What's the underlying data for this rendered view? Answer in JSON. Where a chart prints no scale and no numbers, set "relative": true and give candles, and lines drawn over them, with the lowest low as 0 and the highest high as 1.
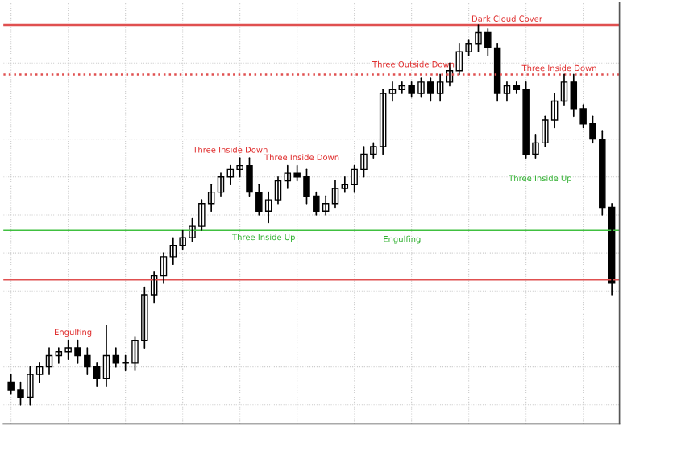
{
  "chart_data": {
    "type": "candlestick",
    "relative": true,
    "grid": true,
    "categories": [
      null,
      null,
      null,
      null,
      null,
      null,
      null,
      null,
      null,
      null,
      null,
      null,
      null,
      null,
      null,
      null,
      null,
      null,
      null,
      null,
      null,
      null,
      null,
      null,
      null,
      null,
      null,
      null,
      null,
      null,
      null,
      null,
      null,
      null,
      null,
      null,
      null,
      null,
      null,
      null,
      null,
      null,
      null,
      null,
      null,
      null,
      null,
      null,
      null,
      null,
      null,
      null,
      null,
      null,
      null,
      null,
      null,
      null,
      null,
      null,
      null,
      null,
      null,
      null
    ],
    "ohlc": [
      [
        0.06,
        0.08,
        0.03,
        0.04
      ],
      [
        0.04,
        0.06,
        0,
        0.02
      ],
      [
        0.02,
        0.1,
        0,
        0.08
      ],
      [
        0.08,
        0.11,
        0.06,
        0.1
      ],
      [
        0.1,
        0.15,
        0.08,
        0.13
      ],
      [
        0.13,
        0.15,
        0.11,
        0.14
      ],
      [
        0.14,
        0.17,
        0.12,
        0.15
      ],
      [
        0.15,
        0.17,
        0.11,
        0.13
      ],
      [
        0.13,
        0.15,
        0.08,
        0.1
      ],
      [
        0.1,
        0.11,
        0.05,
        0.07
      ],
      [
        0.07,
        0.21,
        0.05,
        0.13
      ],
      [
        0.13,
        0.15,
        0.1,
        0.11
      ],
      [
        0.11,
        0.13,
        0.09,
        0.11
      ],
      [
        0.11,
        0.18,
        0.09,
        0.17
      ],
      [
        0.17,
        0.31,
        0.15,
        0.29
      ],
      [
        0.29,
        0.35,
        0.27,
        0.34
      ],
      [
        0.34,
        0.4,
        0.32,
        0.39
      ],
      [
        0.39,
        0.44,
        0.37,
        0.42
      ],
      [
        0.42,
        0.46,
        0.41,
        0.44
      ],
      [
        0.44,
        0.49,
        0.43,
        0.47
      ],
      [
        0.47,
        0.54,
        0.46,
        0.53
      ],
      [
        0.53,
        0.58,
        0.51,
        0.56
      ],
      [
        0.56,
        0.61,
        0.55,
        0.6
      ],
      [
        0.6,
        0.63,
        0.58,
        0.62
      ],
      [
        0.62,
        0.65,
        0.6,
        0.63
      ],
      [
        0.63,
        0.65,
        0.55,
        0.56
      ],
      [
        0.56,
        0.58,
        0.5,
        0.51
      ],
      [
        0.51,
        0.56,
        0.48,
        0.54
      ],
      [
        0.54,
        0.6,
        0.53,
        0.59
      ],
      [
        0.59,
        0.63,
        0.57,
        0.61
      ],
      [
        0.61,
        0.63,
        0.59,
        0.6
      ],
      [
        0.6,
        0.62,
        0.53,
        0.55
      ],
      [
        0.55,
        0.56,
        0.5,
        0.51
      ],
      [
        0.51,
        0.55,
        0.5,
        0.53
      ],
      [
        0.53,
        0.59,
        0.52,
        0.57
      ],
      [
        0.57,
        0.6,
        0.56,
        0.58
      ],
      [
        0.58,
        0.63,
        0.56,
        0.62
      ],
      [
        0.62,
        0.68,
        0.6,
        0.66
      ],
      [
        0.66,
        0.69,
        0.65,
        0.68
      ],
      [
        0.68,
        0.83,
        0.66,
        0.82
      ],
      [
        0.82,
        0.85,
        0.8,
        0.83
      ],
      [
        0.83,
        0.85,
        0.82,
        0.84
      ],
      [
        0.84,
        0.85,
        0.81,
        0.82
      ],
      [
        0.82,
        0.86,
        0.81,
        0.85
      ],
      [
        0.85,
        0.86,
        0.8,
        0.82
      ],
      [
        0.82,
        0.87,
        0.8,
        0.85
      ],
      [
        0.85,
        0.9,
        0.84,
        0.88
      ],
      [
        0.88,
        0.95,
        0.87,
        0.93
      ],
      [
        0.93,
        0.96,
        0.92,
        0.95
      ],
      [
        0.95,
        1,
        0.93,
        0.98
      ],
      [
        0.98,
        0.99,
        0.92,
        0.94
      ],
      [
        0.94,
        0.95,
        0.8,
        0.82
      ],
      [
        0.82,
        0.85,
        0.8,
        0.84
      ],
      [
        0.84,
        0.85,
        0.82,
        0.83
      ],
      [
        0.83,
        0.85,
        0.65,
        0.66
      ],
      [
        0.66,
        0.71,
        0.65,
        0.69
      ],
      [
        0.69,
        0.76,
        0.68,
        0.75
      ],
      [
        0.75,
        0.82,
        0.73,
        0.8
      ],
      [
        0.8,
        0.87,
        0.79,
        0.85
      ],
      [
        0.85,
        0.87,
        0.76,
        0.78
      ],
      [
        0.78,
        0.79,
        0.73,
        0.74
      ],
      [
        0.74,
        0.76,
        0.69,
        0.7
      ],
      [
        0.7,
        0.72,
        0.5,
        0.52
      ],
      [
        0.52,
        0.53,
        0.29,
        0.32
      ]
    ],
    "ref_lines": [
      {
        "axis": "y",
        "value": 0.33,
        "color": "#e05050"
      },
      {
        "axis": "y",
        "value": 0.46,
        "color": "#40c040"
      },
      {
        "axis": "y",
        "value": 0.87,
        "color": "#e05050",
        "line_style": "dotted"
      },
      {
        "axis": "y",
        "value": 1,
        "color": "#e05050"
      }
    ],
    "annotations": [
      "Engulfing",
      "Three Inside Down",
      "Three Inside Up",
      "Three Inside Down",
      "Engulfing",
      "Three Outside Down",
      "Dark Cloud Cover",
      "Three Inside Up",
      "Three Inside Down"
    ]
  }
}
